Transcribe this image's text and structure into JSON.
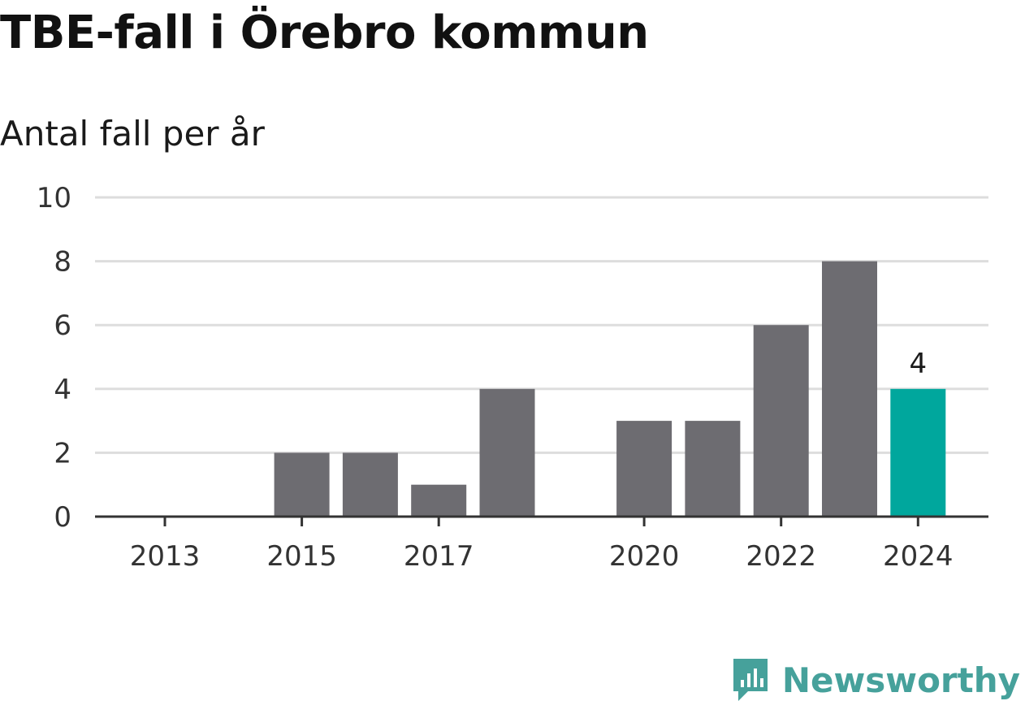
{
  "title": "TBE-fall i Örebro kommun",
  "subtitle": "Antal fall per år",
  "brand": {
    "name": "Newsworthy",
    "icon": "newsworthy-logo-icon",
    "color": "#46a19b"
  },
  "colors": {
    "bar": "#6d6c71",
    "highlight": "#00a79d",
    "grid": "#dddddd",
    "axis": "#333333"
  },
  "chart_data": {
    "type": "bar",
    "categories": [
      "2013",
      "2014",
      "2015",
      "2016",
      "2017",
      "2018",
      "2019",
      "2020",
      "2021",
      "2022",
      "2023",
      "2024"
    ],
    "values": [
      0,
      0,
      2,
      2,
      1,
      4,
      0,
      3,
      3,
      6,
      8,
      4
    ],
    "x_tick_labels": [
      "2013",
      "2015",
      "2017",
      "2020",
      "2022",
      "2024"
    ],
    "y_ticks": [
      "0",
      "2",
      "4",
      "6",
      "8",
      "10"
    ],
    "ylim": [
      0,
      10
    ],
    "highlight_category": "2024",
    "annotations": [
      {
        "category": "2024",
        "text": "4"
      }
    ],
    "grid": true,
    "legend": "none"
  }
}
